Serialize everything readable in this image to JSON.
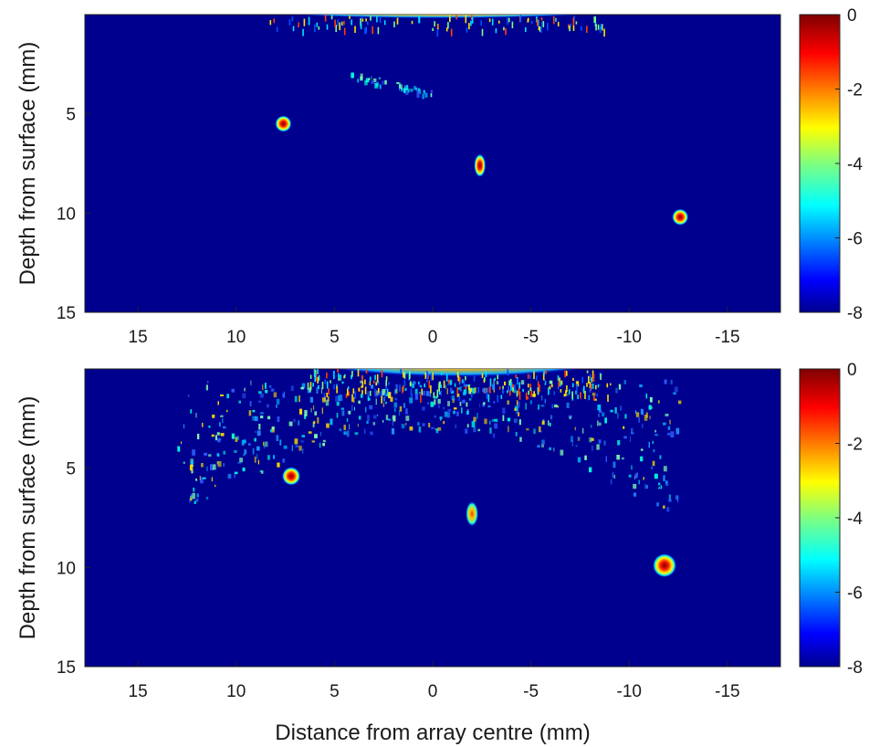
{
  "chart_data": [
    {
      "type": "heatmap",
      "title": "",
      "xlabel": "",
      "ylabel": "Depth from surface (mm)",
      "xlim": [
        17.7,
        -17.7
      ],
      "ylim": [
        15,
        0
      ],
      "xticks": [
        15,
        10,
        5,
        0,
        -5,
        -10,
        -15
      ],
      "xtick_labels": [
        "15",
        "10",
        "5",
        "0",
        "-5",
        "-10",
        "-15"
      ],
      "yticks": [
        5,
        10,
        15
      ],
      "ytick_labels": [
        "5",
        "10",
        "15"
      ],
      "colormap": "jet",
      "background_color": "#00008f",
      "colorbar": {
        "min": -8,
        "max": 0,
        "ticks": [
          "0",
          "-2",
          "-4",
          "-6",
          "-8"
        ]
      },
      "scatterers": [
        {
          "x": 7.6,
          "z": 5.5,
          "level_db": 0
        },
        {
          "x": -2.4,
          "z": 7.6,
          "level_db": -1
        },
        {
          "x": -12.6,
          "z": 10.2,
          "level_db": 0
        }
      ],
      "surface_echo": {
        "x_range": [
          7,
          -7.5
        ],
        "z": 0.15,
        "level_db": 0
      },
      "artifacts": [
        {
          "x_range": [
            4.2,
            0.0
          ],
          "z_range": [
            2.8,
            4.0
          ],
          "level_db": -5.5
        }
      ]
    },
    {
      "type": "heatmap",
      "title": "",
      "xlabel": "Distance from array centre (mm)",
      "ylabel": "Depth from surface (mm)",
      "xlim": [
        17.7,
        -17.7
      ],
      "ylim": [
        15,
        0
      ],
      "xticks": [
        15,
        10,
        5,
        0,
        -5,
        -10,
        -15
      ],
      "xtick_labels": [
        "15",
        "10",
        "5",
        "0",
        "-5",
        "-10",
        "-15"
      ],
      "yticks": [
        5,
        10,
        15
      ],
      "ytick_labels": [
        "5",
        "10",
        "15"
      ],
      "colormap": "jet",
      "background_color": "#00008f",
      "colorbar": {
        "min": -8,
        "max": 0,
        "ticks": [
          "0",
          "-2",
          "-4",
          "-6",
          "-8"
        ]
      },
      "scatterers": [
        {
          "x": 7.2,
          "z": 5.4,
          "level_db": -1
        },
        {
          "x": -2.0,
          "z": 7.3,
          "level_db": -2
        },
        {
          "x": -11.8,
          "z": 9.9,
          "level_db": 0
        }
      ],
      "surface_echo": {
        "x_range": [
          5,
          -7.5
        ],
        "z": 0.3,
        "level_db": 0
      },
      "artifacts": [
        {
          "x_range": [
            13,
            -12.5
          ],
          "z_range": [
            0.5,
            6.0
          ],
          "level_db": -5.5
        }
      ]
    }
  ]
}
